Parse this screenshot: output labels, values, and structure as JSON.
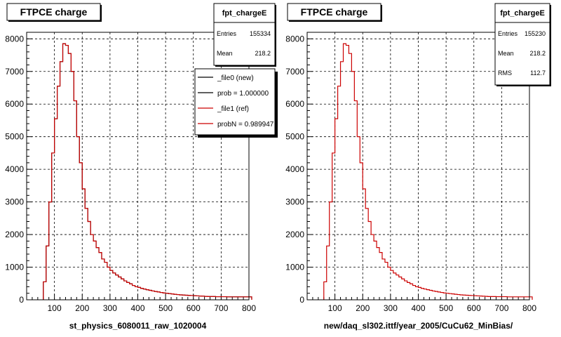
{
  "bottom_caption": "",
  "chart_data": [
    {
      "type": "histogram",
      "title": "FTPCE charge",
      "xlabel": "st_physics_6080011_raw_1020004",
      "xlim": [
        0,
        800
      ],
      "ylim": [
        0,
        8200
      ],
      "x_ticks": [
        "100",
        "200",
        "300",
        "400",
        "500",
        "600",
        "700",
        "800"
      ],
      "y_ticks": [
        "0",
        "1000",
        "2000",
        "3000",
        "4000",
        "5000",
        "6000",
        "7000",
        "8000"
      ],
      "grid": true,
      "bin_width": 10,
      "stats": {
        "name": "fpt_chargeE",
        "rows": [
          {
            "label": "Entries",
            "value": "155334"
          },
          {
            "label": "Mean",
            "value": "218.2"
          }
        ]
      },
      "legend": {
        "position": "top-right",
        "entries": [
          {
            "label": "_file0 (new)",
            "color": "#000000"
          },
          {
            "label": "prob = 1.000000",
            "color": "#000000"
          },
          {
            "label": "_file1 (ref)",
            "color": "#cc0000"
          },
          {
            "label": "probN = 0.989947",
            "color": "#cc0000"
          }
        ]
      },
      "series": [
        {
          "color": "#000000",
          "x_start": 60,
          "values": [
            550,
            1650,
            3000,
            4500,
            5550,
            6550,
            7300,
            7850,
            7800,
            7550,
            7000,
            6100,
            5000,
            4200,
            3400,
            2800,
            2400,
            2000,
            1800,
            1600,
            1450,
            1250,
            1150,
            1000,
            900,
            820,
            760,
            700,
            640,
            580,
            530,
            490,
            440,
            400,
            380,
            350,
            330,
            310,
            290,
            270,
            255,
            240,
            225,
            210,
            200,
            190,
            180,
            170,
            160,
            150,
            145,
            140,
            135,
            130,
            125,
            120,
            115,
            110,
            105,
            100,
            100,
            100,
            95,
            95,
            95,
            95,
            90,
            90,
            90,
            90,
            90,
            90,
            90,
            90,
            90
          ]
        },
        {
          "color": "#cc0000",
          "x_start": 60,
          "values": [
            550,
            1650,
            3000,
            4500,
            5550,
            6550,
            7300,
            7850,
            7800,
            7550,
            7000,
            6100,
            5000,
            4200,
            3400,
            2800,
            2400,
            2000,
            1800,
            1600,
            1450,
            1250,
            1150,
            1000,
            900,
            820,
            760,
            700,
            640,
            580,
            530,
            490,
            440,
            400,
            380,
            350,
            330,
            310,
            290,
            270,
            255,
            240,
            225,
            210,
            200,
            190,
            180,
            170,
            160,
            150,
            145,
            140,
            135,
            130,
            125,
            120,
            115,
            110,
            105,
            100,
            100,
            100,
            95,
            95,
            95,
            95,
            90,
            90,
            90,
            90,
            90,
            90,
            90,
            90,
            90
          ]
        }
      ]
    },
    {
      "type": "histogram",
      "title": "FTPCE charge",
      "xlabel": "new/daq_sl302.ittf/year_2005/CuCu62_MinBias/",
      "xlim": [
        0,
        800
      ],
      "ylim": [
        0,
        8200
      ],
      "x_ticks": [
        "100",
        "200",
        "300",
        "400",
        "500",
        "600",
        "700",
        "800"
      ],
      "y_ticks": [
        "0",
        "1000",
        "2000",
        "3000",
        "4000",
        "5000",
        "6000",
        "7000",
        "8000"
      ],
      "grid": true,
      "bin_width": 10,
      "stats": {
        "name": "fpt_chargeE",
        "rows": [
          {
            "label": "Entries",
            "value": "155230"
          },
          {
            "label": "Mean",
            "value": "218.2"
          },
          {
            "label": "RMS",
            "value": "112.7"
          }
        ]
      },
      "legend": null,
      "series": [
        {
          "color": "#cc0000",
          "x_start": 60,
          "values": [
            550,
            1650,
            3000,
            4500,
            5550,
            6550,
            7300,
            7850,
            7800,
            7550,
            7000,
            6100,
            5000,
            4200,
            3400,
            2800,
            2400,
            2000,
            1800,
            1600,
            1450,
            1250,
            1150,
            1000,
            900,
            820,
            760,
            700,
            640,
            580,
            530,
            490,
            440,
            400,
            380,
            350,
            330,
            310,
            290,
            270,
            255,
            240,
            225,
            210,
            200,
            190,
            180,
            170,
            160,
            150,
            145,
            140,
            135,
            130,
            125,
            120,
            115,
            110,
            105,
            100,
            100,
            100,
            95,
            95,
            95,
            95,
            90,
            90,
            90,
            90,
            90,
            90,
            90,
            90,
            90
          ]
        }
      ]
    }
  ]
}
